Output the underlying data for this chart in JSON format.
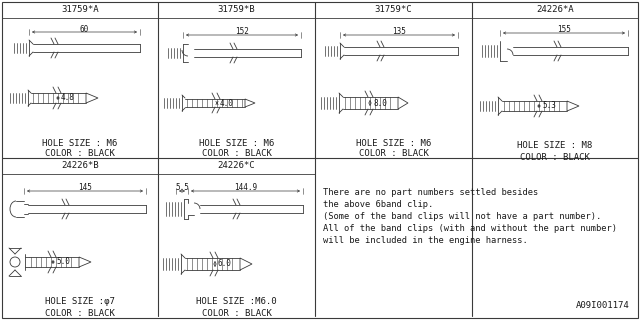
{
  "part_numbers_top": [
    "31759*A",
    "31759*B",
    "31759*C",
    "24226*A"
  ],
  "part_numbers_bot": [
    "24226*B",
    "24226*C"
  ],
  "dims": {
    "31759A": {
      "len": "60",
      "dia": "4.8",
      "hole": "M6"
    },
    "31759B": {
      "len": "152",
      "dia": "4.0",
      "hole": "M6"
    },
    "31759C": {
      "len": "135",
      "dia": "8.0",
      "hole": "M6"
    },
    "24226A": {
      "len": "155",
      "dia": "5.3",
      "hole": "M8"
    },
    "24226B": {
      "len": "145",
      "dia": "5.0",
      "hole": "φ7"
    },
    "24226C": {
      "len1": "5.5",
      "len2": "144.9",
      "dia": "6.0",
      "hole": "M6.0"
    }
  },
  "note_lines": [
    "There are no part numbers settled besides",
    "the above 6band clip.",
    "(Some of the band clips will not have a part number).",
    "All of the band clips (with and without the part number)",
    "will be included in the engine harness."
  ],
  "footer": "A09I001174",
  "lc": "#3a3a3a",
  "fc": "#1a1a1a",
  "bg": "#ffffff"
}
